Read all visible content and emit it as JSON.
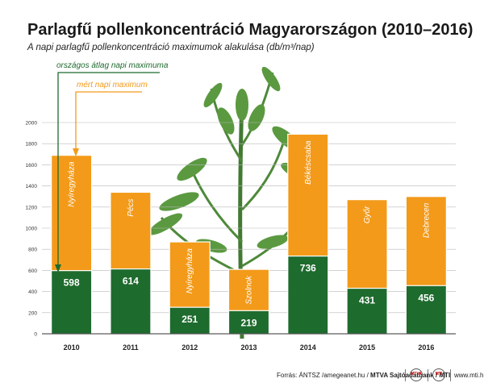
{
  "header": {
    "title": "Parlagfű pollenkoncentráció Magyarországon (2010–2016)",
    "subtitle": "A napi parlagfű pollenkoncentráció maximumok alakulása (db/m³/nap)"
  },
  "legend": {
    "national_label": "országos átlag napi maximuma",
    "measured_label": "mért napi maximum"
  },
  "colors": {
    "national": "#1e6b2e",
    "measured": "#f39a1a",
    "grid": "#b8b8b8",
    "axis": "#333333"
  },
  "footer": {
    "source_text": "Forrás: ÁNTSZ /amegeanet.hu / ",
    "agency_text": "MTVA Sajtóadatbank / MTI",
    "url": "www.mti.hu",
    "logo1": "MTVA",
    "logo2": "MTI"
  },
  "chart_data": {
    "type": "bar",
    "categories": [
      "2010",
      "2011",
      "2012",
      "2013",
      "2014",
      "2015",
      "2016"
    ],
    "ylim": [
      0,
      2000
    ],
    "yticks": [
      0,
      200,
      400,
      600,
      800,
      1000,
      1200,
      1400,
      1600,
      1800,
      2000
    ],
    "grid": true,
    "legend_position": "top-left",
    "series": [
      {
        "name": "mért napi maximum",
        "values": [
          1690,
          1340,
          870,
          610,
          1890,
          1270,
          1300
        ],
        "labels": [
          "Nyíregyháza",
          "Pécs",
          "Nyíregyháza",
          "Szolnok",
          "Békéscsaba",
          "Győr",
          "Debrecen"
        ]
      },
      {
        "name": "országos átlag napi maximuma",
        "values": [
          598,
          614,
          251,
          219,
          736,
          431,
          456
        ]
      }
    ]
  }
}
